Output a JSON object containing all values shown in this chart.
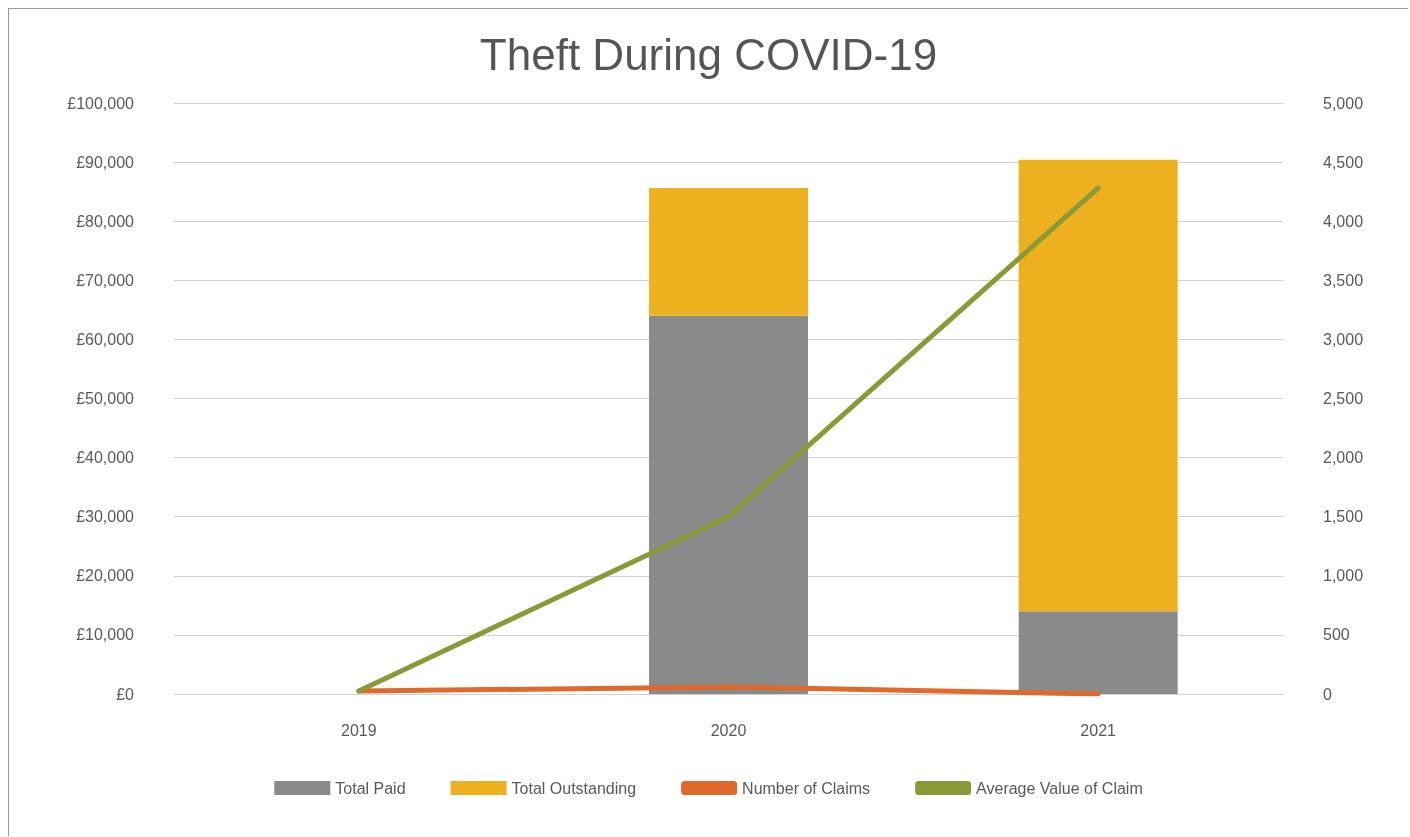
{
  "chart_data": {
    "type": "bar",
    "title": "Theft During COVID-19",
    "categories": [
      "2019",
      "2020",
      "2021"
    ],
    "stacked": true,
    "series": [
      {
        "name": "Total Paid",
        "color": "#898b8b",
        "values": [
          0,
          64000,
          14000
        ]
      },
      {
        "name": "Total Outstanding",
        "color": "#edb120",
        "values": [
          0,
          21600,
          76400
        ]
      },
      {
        "name": "Number of Claims",
        "type": "line",
        "axis": "y2",
        "color": "#e06a2e",
        "values": [
          25,
          60,
          0
        ]
      },
      {
        "name": "Average Value of Claim",
        "type": "line",
        "axis": "y2",
        "color": "#8a9a36",
        "values": [
          25,
          1500,
          4280
        ]
      }
    ],
    "ylim": [
      0,
      100000
    ],
    "yticks": [
      {
        "value": 0,
        "label": "£0"
      },
      {
        "value": 10000,
        "label": "£10,000"
      },
      {
        "value": 20000,
        "label": "£20,000"
      },
      {
        "value": 30000,
        "label": "£30,000"
      },
      {
        "value": 40000,
        "label": "£40,000"
      },
      {
        "value": 50000,
        "label": "£50,000"
      },
      {
        "value": 60000,
        "label": "£60,000"
      },
      {
        "value": 70000,
        "label": "£70,000"
      },
      {
        "value": 80000,
        "label": "£80,000"
      },
      {
        "value": 90000,
        "label": "£90,000"
      },
      {
        "value": 100000,
        "label": "£100,000"
      }
    ],
    "y2lim": [
      0,
      5000
    ],
    "y2ticks": [
      {
        "value": 0,
        "label": "0"
      },
      {
        "value": 500,
        "label": "500"
      },
      {
        "value": 1000,
        "label": "1,000"
      },
      {
        "value": 1500,
        "label": "1,500"
      },
      {
        "value": 2000,
        "label": "2,000"
      },
      {
        "value": 2500,
        "label": "2,500"
      },
      {
        "value": 3000,
        "label": "3,000"
      },
      {
        "value": 3500,
        "label": "3,500"
      },
      {
        "value": 4000,
        "label": "4,000"
      },
      {
        "value": 4500,
        "label": "4,500"
      },
      {
        "value": 5000,
        "label": "5,000"
      }
    ],
    "grid": "y",
    "legend": "bottom",
    "marker": "none",
    "line_style": "solid"
  }
}
